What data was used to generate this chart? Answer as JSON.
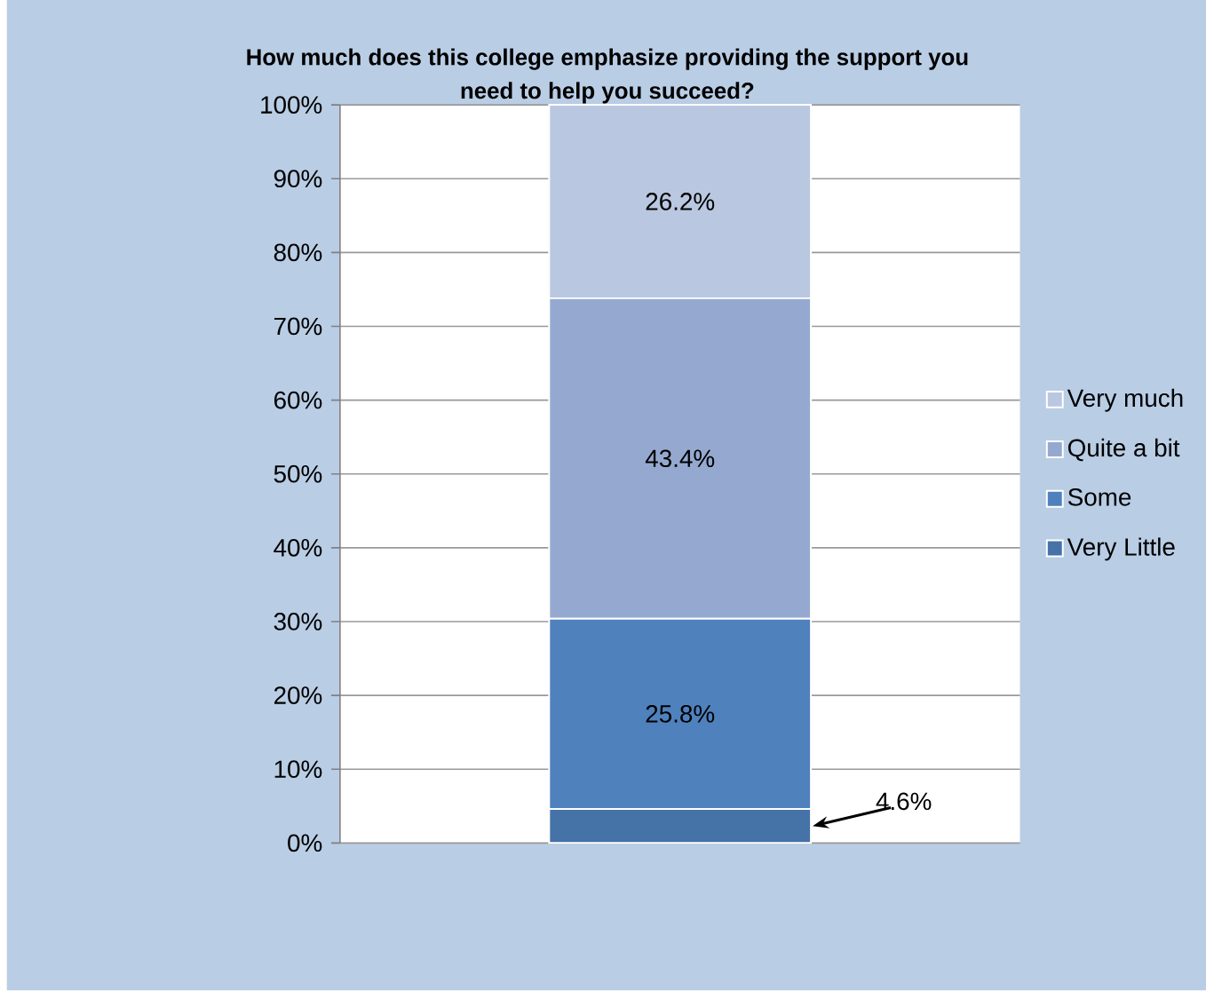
{
  "chart_data": {
    "type": "bar",
    "title": "How much does this college emphasize providing the support you need to help you succeed?",
    "categories": [
      null
    ],
    "stacked": true,
    "ylim": [
      0,
      100
    ],
    "yticks": [
      {
        "value": 0,
        "label": "0%"
      },
      {
        "value": 10,
        "label": "10%"
      },
      {
        "value": 20,
        "label": "20%"
      },
      {
        "value": 30,
        "label": "30%"
      },
      {
        "value": 40,
        "label": "40%"
      },
      {
        "value": 50,
        "label": "50%"
      },
      {
        "value": 60,
        "label": "60%"
      },
      {
        "value": 70,
        "label": "70%"
      },
      {
        "value": 80,
        "label": "80%"
      },
      {
        "value": 90,
        "label": "90%"
      },
      {
        "value": 100,
        "label": "100%"
      }
    ],
    "grid": "y",
    "legend": "right",
    "series": [
      {
        "name": "Very Little",
        "color": "#4572a7",
        "values": [
          4.6
        ],
        "value_labels": [
          "4.6%"
        ]
      },
      {
        "name": "Some",
        "color": "#4f81bd",
        "values": [
          25.8
        ],
        "value_labels": [
          "25.8%"
        ]
      },
      {
        "name": "Quite a bit",
        "color": "#95a9d0",
        "values": [
          43.4
        ],
        "value_labels": [
          "43.4%"
        ]
      },
      {
        "name": "Very much",
        "color": "#b9c7e0",
        "values": [
          26.2
        ],
        "value_labels": [
          "26.2%"
        ]
      }
    ]
  }
}
